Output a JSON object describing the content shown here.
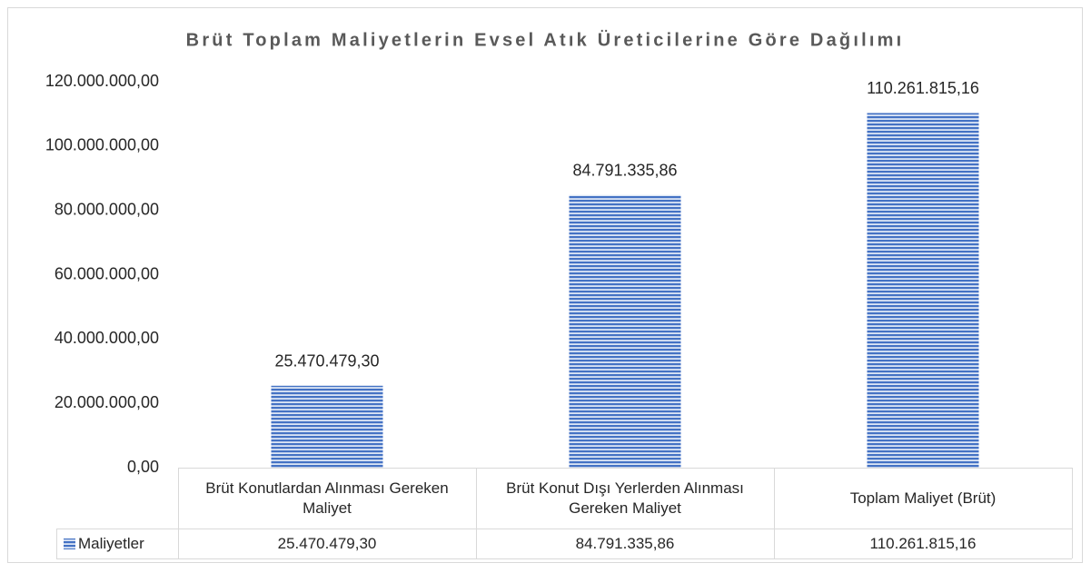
{
  "chart_data": {
    "type": "bar",
    "title": "Brüt Toplam Maliyetlerin Evsel Atık Üreticilerine Göre Dağılımı",
    "categories": [
      "Brüt Konutlardan Alınması Gereken Maliyet",
      "Brüt Konut Dışı Yerlerden Alınması Gereken Maliyet",
      "Toplam Maliyet (Brüt)"
    ],
    "series": [
      {
        "name": "Maliyetler",
        "color": "#4472c4",
        "values": [
          25470479.3,
          84791335.86,
          110261815.16
        ],
        "value_labels": [
          "25.470.479,30",
          "84.791.335,86",
          "110.261.815,16"
        ]
      }
    ],
    "ylim": [
      0,
      120000000
    ],
    "yticks": [
      {
        "value": 0,
        "label": "0,00"
      },
      {
        "value": 20000000,
        "label": "20.000.000,00"
      },
      {
        "value": 40000000,
        "label": "40.000.000,00"
      },
      {
        "value": 60000000,
        "label": "60.000.000,00"
      },
      {
        "value": 80000000,
        "label": "80.000.000,00"
      },
      {
        "value": 100000000,
        "label": "100.000.000,00"
      },
      {
        "value": 120000000,
        "label": "120.000.000,00"
      }
    ],
    "grid": false
  }
}
